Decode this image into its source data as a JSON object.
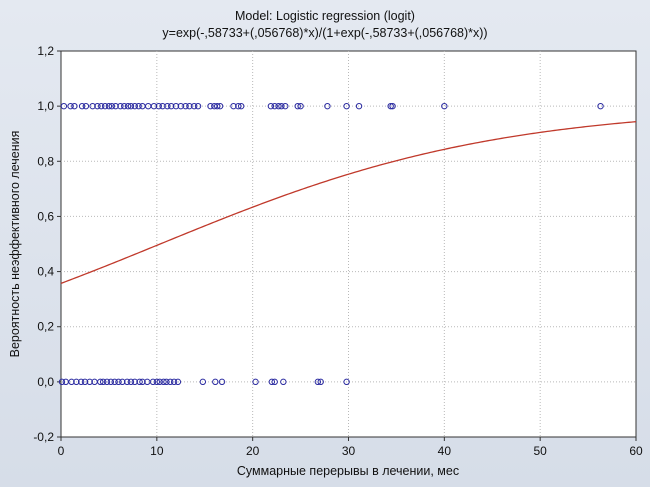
{
  "chart_data": {
    "type": "scatter",
    "title": "Model: Logistic regression (logit)",
    "subtitle": "y=exp(-,58733+(,056768)*x)/(1+exp(-,58733+(,056768)*x))",
    "xlabel": "Суммарные перерывы в лечении, мес",
    "ylabel": "Вероятность неэффективного лечения",
    "xlim": [
      0,
      60
    ],
    "ylim": [
      -0.2,
      1.2
    ],
    "x_ticks": [
      "0",
      "10",
      "20",
      "30",
      "40",
      "50",
      "60"
    ],
    "y_ticks": [
      "-0,2",
      "0,0",
      "0,2",
      "0,4",
      "0,6",
      "0,8",
      "1,0",
      "1,2"
    ],
    "grid": true,
    "series": [
      {
        "kind": "points",
        "y": 1.0,
        "x": [
          0.3,
          1.0,
          1.4,
          2.2,
          2.6,
          3.3,
          3.8,
          4.2,
          4.6,
          5.0,
          5.3,
          5.7,
          6.2,
          6.6,
          7.0,
          7.3,
          7.7,
          8.1,
          8.5,
          9.1,
          9.7,
          10.2,
          10.6,
          11.1,
          11.5,
          12.0,
          12.5,
          13.0,
          13.4,
          13.9,
          14.3,
          15.6,
          16.0,
          16.3,
          16.6,
          18.0,
          18.5,
          18.8,
          21.9,
          22.3,
          22.7,
          23.0,
          23.4,
          24.7,
          25.0,
          27.8,
          29.8,
          31.1,
          34.4,
          34.6,
          40.0,
          56.3
        ],
        "color": "#2a2aa0"
      },
      {
        "kind": "points",
        "y": 0.0,
        "x": [
          0.1,
          0.5,
          1.1,
          1.6,
          2.1,
          2.5,
          3.0,
          3.5,
          4.1,
          4.4,
          4.8,
          5.2,
          5.6,
          6.0,
          6.4,
          6.9,
          7.3,
          7.7,
          8.2,
          8.5,
          9.0,
          9.6,
          10.0,
          10.3,
          10.7,
          11.0,
          11.4,
          11.8,
          12.2,
          14.8,
          16.1,
          16.8,
          20.3,
          22.0,
          22.3,
          23.2,
          26.8,
          27.1,
          29.8
        ],
        "color": "#2a2aa0"
      },
      {
        "kind": "curve",
        "formula": "logistic",
        "intercept": -0.58733,
        "slope": 0.056768,
        "color": "#c0392b"
      }
    ]
  }
}
